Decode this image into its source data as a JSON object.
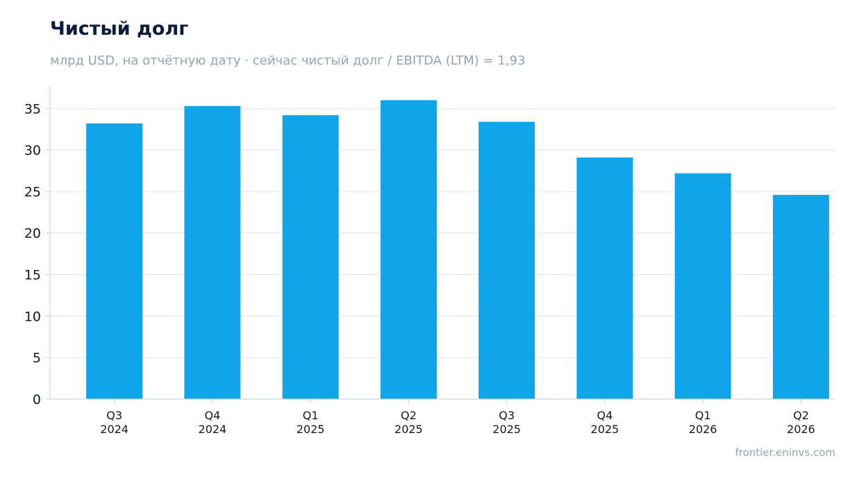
{
  "title": "Чистый долг",
  "subtitle": "млрд USD, на отчётную дату · сейчас чистый долг / EBITDA (LTM) = 1,93",
  "source": "frontier.eninvs.com",
  "colors": {
    "bar": "#10a5e8",
    "grid": "#e2e8f0",
    "axis": "#cbd5e1",
    "title": "#0f1b3d",
    "muted": "#94a3b8"
  },
  "chart_data": {
    "type": "bar",
    "categories": [
      [
        "Q3",
        "2024"
      ],
      [
        "Q4",
        "2024"
      ],
      [
        "Q1",
        "2025"
      ],
      [
        "Q2",
        "2025"
      ],
      [
        "Q3",
        "2025"
      ],
      [
        "Q4",
        "2025"
      ],
      [
        "Q1",
        "2026"
      ],
      [
        "Q2",
        "2026"
      ]
    ],
    "values": [
      33.2,
      35.3,
      34.2,
      36.0,
      33.4,
      29.1,
      27.2,
      24.6
    ],
    "ylim": [
      0,
      37.7
    ],
    "yticks": [
      0,
      5,
      10,
      15,
      20,
      25,
      30,
      35
    ],
    "grid": true
  }
}
